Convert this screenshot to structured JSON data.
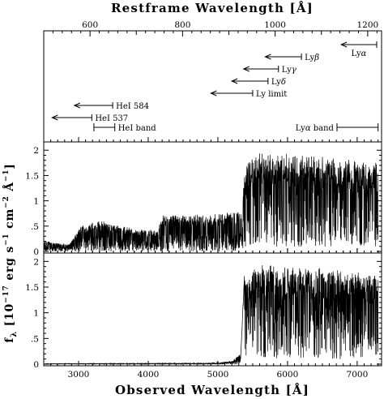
{
  "chart_data": {
    "type": "line",
    "top_axis": {
      "label": "Restframe Wavelength [Å]",
      "ticks": [
        600,
        800,
        1000,
        1200
      ],
      "xlim": [
        500,
        1230
      ]
    },
    "bottom_axis": {
      "label": "Observed Wavelength [Å]",
      "ticks": [
        3000,
        4000,
        5000,
        6000,
        7000
      ],
      "xlim": [
        2500,
        7350
      ]
    },
    "ylabel": "f_λ [10⁻¹⁷ erg s⁻¹ cm⁻² Å⁻¹]",
    "ylabel_parts": {
      "f": "f",
      "lambda_sub": "λ",
      "b1": " [10",
      "e17": "−17",
      "erg": " erg s",
      "e1a": "−1",
      "cm": " cm",
      "e2": "−2",
      "ang": " Å",
      "e1b": "−1",
      "close": "]"
    },
    "ylim": [
      0,
      2.1
    ],
    "yticks": [
      0,
      0.5,
      1,
      1.5,
      2
    ],
    "ytick_labels": [
      "0",
      ".5",
      "1",
      "1.5",
      "2"
    ],
    "annotations": [
      {
        "label": "Lyα",
        "label_main": "Ly",
        "label_sub": "α",
        "x_start": 6770,
        "x_end": 7280,
        "row": 1,
        "side": "below"
      },
      {
        "label": "Lyβ",
        "label_main": "Ly",
        "label_sub": "β",
        "x_start": 5680,
        "x_end": 6200,
        "row": 2,
        "side": "right"
      },
      {
        "label": "Lyγ",
        "label_main": "Ly",
        "label_sub": "γ",
        "x_start": 5370,
        "x_end": 5870,
        "row": 3,
        "side": "right"
      },
      {
        "label": "Lyδ",
        "label_main": "Ly",
        "label_sub": "δ",
        "x_start": 5200,
        "x_end": 5720,
        "row": 4,
        "side": "right"
      },
      {
        "label": "Ly limit",
        "label_main": "Ly limit",
        "label_sub": "",
        "x_start": 4900,
        "x_end": 5500,
        "row": 5,
        "side": "right"
      },
      {
        "label": "HeI 584",
        "label_main": "HeI 584",
        "label_sub": "",
        "x_start": 2940,
        "x_end": 3490,
        "row": 6,
        "side": "right"
      },
      {
        "label": "HeI 537",
        "label_main": "HeI 537",
        "label_sub": "",
        "x_start": 2620,
        "x_end": 3190,
        "row": 7,
        "side": "right"
      }
    ],
    "bands": [
      {
        "label": "HeI band",
        "label_main": "HeI band",
        "label_sub": "",
        "x_start": 3220,
        "x_end": 3520,
        "side": "right"
      },
      {
        "label": "Lyα band",
        "label_main": "Ly",
        "label_sub": "α",
        "label_tail": " band",
        "x_start": 6710,
        "x_end": 7300,
        "side": "left"
      }
    ],
    "series": [
      {
        "panel": "middle",
        "type": "forest",
        "envelope": [
          [
            2510,
            0.21
          ],
          [
            2870,
            0.14
          ],
          [
            3010,
            0.5
          ],
          [
            3300,
            0.62
          ],
          [
            3800,
            0.45
          ],
          [
            4150,
            0.42
          ],
          [
            4180,
            0.72
          ],
          [
            4600,
            0.72
          ],
          [
            4950,
            0.76
          ],
          [
            5350,
            0.82
          ],
          [
            5380,
            1.7
          ],
          [
            5530,
            1.95
          ],
          [
            6000,
            1.95
          ],
          [
            7300,
            1.77
          ]
        ]
      },
      {
        "panel": "bottom",
        "type": "forest",
        "envelope": [
          [
            2510,
            0.01
          ],
          [
            4900,
            0.02
          ],
          [
            5200,
            0.06
          ],
          [
            5330,
            0.2
          ],
          [
            5380,
            1.75
          ],
          [
            5500,
            1.9
          ],
          [
            5650,
            1.93
          ],
          [
            6000,
            1.93
          ],
          [
            7300,
            1.77
          ]
        ]
      }
    ]
  }
}
